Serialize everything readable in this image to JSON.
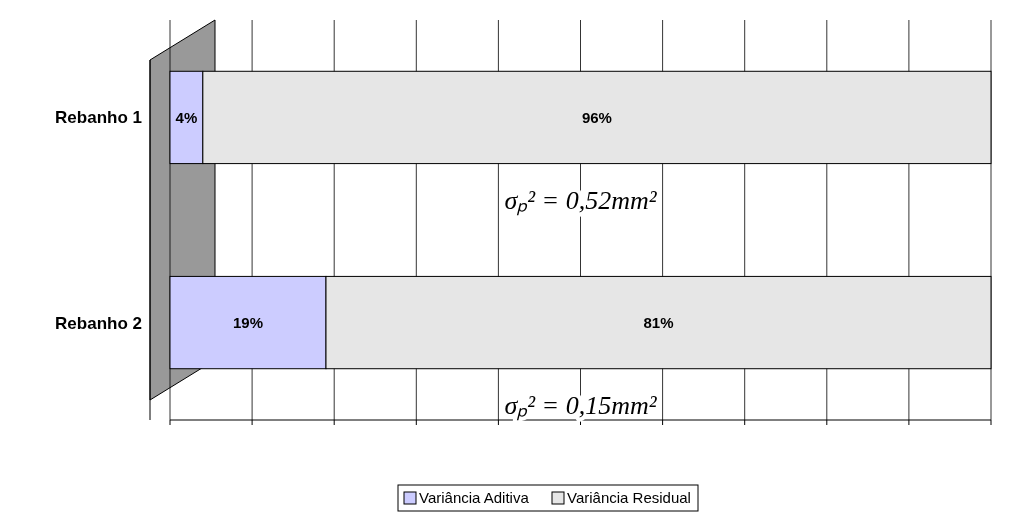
{
  "chart_data": {
    "type": "bar",
    "orientation": "horizontal",
    "stacked": true,
    "categories": [
      "Rebanho 1",
      "Rebanho 2"
    ],
    "series": [
      {
        "name": "Variância Aditiva",
        "color": "#ccccff",
        "values": [
          4,
          19
        ],
        "value_labels": [
          "4%",
          "19%"
        ]
      },
      {
        "name": "Variância Residual",
        "color": "#e6e6e6",
        "values": [
          96,
          81
        ],
        "value_labels": [
          "96%",
          "81%"
        ]
      }
    ],
    "tick_labels": "y",
    "grid": "x",
    "legend": "bottom",
    "annotations": [
      "σₚ² = 0,52mm²",
      "σₚ² = 0,15mm²"
    ]
  }
}
